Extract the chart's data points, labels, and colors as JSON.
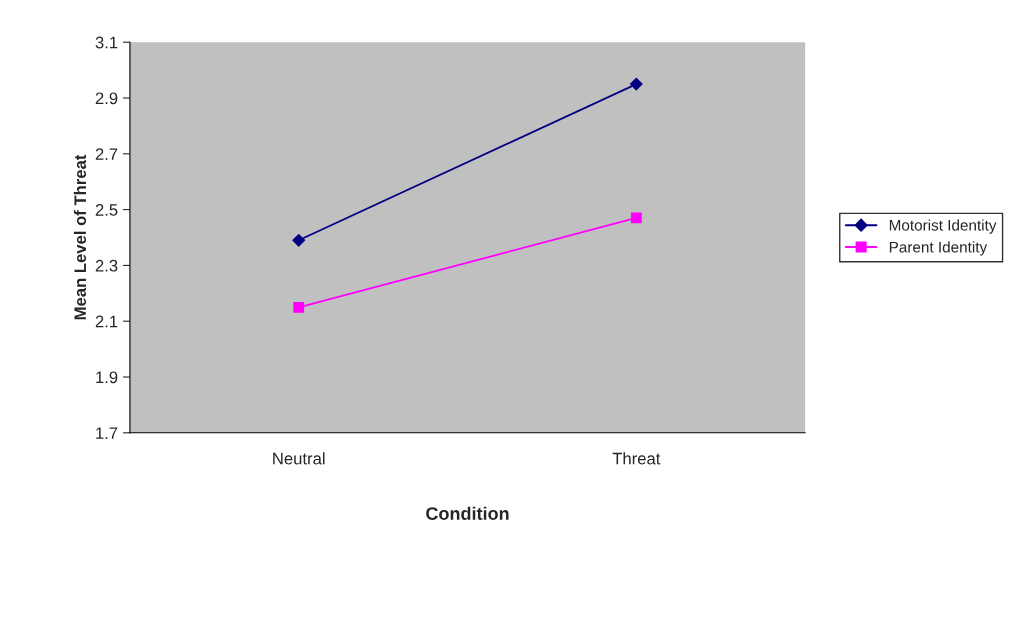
{
  "chart_data": {
    "type": "line",
    "xlabel": "Condition",
    "ylabel": "Mean Level of Threat",
    "categories": [
      "Neutral",
      "Threat"
    ],
    "series": [
      {
        "name": "Motorist Identity",
        "color": "#000080",
        "marker": "diamond",
        "values": [
          2.39,
          2.95
        ]
      },
      {
        "name": "Parent Identity",
        "color": "#ff00ff",
        "marker": "square",
        "values": [
          2.15,
          2.47
        ]
      }
    ],
    "ylim": [
      1.7,
      3.1
    ],
    "yticks": [
      1.7,
      1.9,
      2.1,
      2.3,
      2.5,
      2.7,
      2.9,
      3.1
    ],
    "grid": false,
    "legend": "right"
  }
}
